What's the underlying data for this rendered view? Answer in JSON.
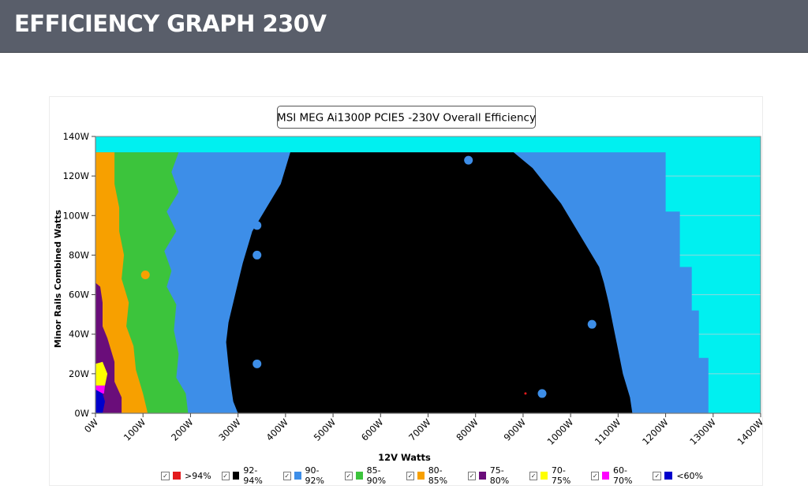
{
  "header": {
    "title": "EFFICIENCY GRAPH 230V"
  },
  "chart_data": {
    "type": "heatmap",
    "title": "MSI MEG Ai1300P PCIE5 -230V Overall Efficiency",
    "xlabel": "12V Watts",
    "ylabel": "Minor Rails Combined Watts",
    "xlim": [
      0,
      1400
    ],
    "ylim": [
      0,
      140
    ],
    "x_ticks": [
      0,
      100,
      200,
      300,
      400,
      500,
      600,
      700,
      800,
      900,
      1000,
      1100,
      1200,
      1300,
      1400
    ],
    "x_tick_labels": [
      "0W",
      "100W",
      "200W",
      "300W",
      "400W",
      "500W",
      "600W",
      "700W",
      "800W",
      "900W",
      "1000W",
      "1100W",
      "1200W",
      "1300W",
      "1400W"
    ],
    "y_ticks": [
      0,
      20,
      40,
      60,
      80,
      100,
      120,
      140
    ],
    "y_tick_labels": [
      "0W",
      "20W",
      "40W",
      "60W",
      "80W",
      "100W",
      "120W",
      "140W"
    ],
    "grid": true,
    "legend_position": "bottom",
    "background_color": "#00f0f0",
    "grid_color": "#8fd8dc",
    "legend": [
      {
        "label": ">94%",
        "color": "#e31a1c",
        "check": "✓"
      },
      {
        "label": "92-94%",
        "color": "#000000",
        "check": "✓"
      },
      {
        "label": "90-92%",
        "color": "#3d8ee8",
        "check": "✓"
      },
      {
        "label": "85-90%",
        "color": "#3cc43c",
        "check": "✓"
      },
      {
        "label": "80-85%",
        "color": "#f7a000",
        "check": "✓"
      },
      {
        "label": "75-80%",
        "color": "#6a0d7a",
        "check": "✓"
      },
      {
        "label": "70-75%",
        "color": "#ffff00",
        "check": "✓"
      },
      {
        "label": "60-70%",
        "color": "#ff00ff",
        "check": "✓"
      },
      {
        "label": "<60%",
        "color": "#0000cc",
        "check": "✓"
      }
    ],
    "data_ymax": 132,
    "regions": [
      {
        "band": "90-92%",
        "color": "#3d8ee8",
        "points": [
          [
            0,
            0
          ],
          [
            1290,
            0
          ],
          [
            1290,
            28
          ],
          [
            1270,
            28
          ],
          [
            1270,
            52
          ],
          [
            1255,
            52
          ],
          [
            1255,
            74
          ],
          [
            1230,
            74
          ],
          [
            1230,
            102
          ],
          [
            1200,
            102
          ],
          [
            1200,
            132
          ],
          [
            0,
            132
          ]
        ]
      },
      {
        "band": "85-90%",
        "color": "#3cc43c",
        "points": [
          [
            0,
            0
          ],
          [
            195,
            0
          ],
          [
            190,
            10
          ],
          [
            170,
            18
          ],
          [
            175,
            30
          ],
          [
            165,
            42
          ],
          [
            170,
            55
          ],
          [
            150,
            64
          ],
          [
            160,
            72
          ],
          [
            145,
            82
          ],
          [
            170,
            92
          ],
          [
            150,
            102
          ],
          [
            175,
            112
          ],
          [
            160,
            122
          ],
          [
            175,
            132
          ],
          [
            0,
            132
          ]
        ]
      },
      {
        "band": "80-85%",
        "color": "#f7a000",
        "points": [
          [
            0,
            0
          ],
          [
            110,
            0
          ],
          [
            100,
            10
          ],
          [
            85,
            22
          ],
          [
            80,
            34
          ],
          [
            65,
            44
          ],
          [
            70,
            56
          ],
          [
            55,
            68
          ],
          [
            60,
            80
          ],
          [
            50,
            92
          ],
          [
            50,
            104
          ],
          [
            40,
            116
          ],
          [
            40,
            132
          ],
          [
            0,
            132
          ]
        ]
      },
      {
        "band": "92-94%",
        "color": "#000000",
        "points": [
          [
            300,
            0
          ],
          [
            1130,
            0
          ],
          [
            1125,
            8
          ],
          [
            1110,
            20
          ],
          [
            1100,
            32
          ],
          [
            1090,
            44
          ],
          [
            1080,
            56
          ],
          [
            1070,
            66
          ],
          [
            1060,
            74
          ],
          [
            1040,
            82
          ],
          [
            1020,
            90
          ],
          [
            1000,
            98
          ],
          [
            980,
            106
          ],
          [
            960,
            112
          ],
          [
            940,
            118
          ],
          [
            920,
            124
          ],
          [
            900,
            128
          ],
          [
            880,
            132
          ],
          [
            410,
            132
          ],
          [
            400,
            124
          ],
          [
            390,
            116
          ],
          [
            370,
            108
          ],
          [
            350,
            100
          ],
          [
            330,
            92
          ],
          [
            320,
            84
          ],
          [
            310,
            76
          ],
          [
            300,
            66
          ],
          [
            290,
            56
          ],
          [
            280,
            46
          ],
          [
            275,
            36
          ],
          [
            280,
            24
          ],
          [
            285,
            14
          ],
          [
            290,
            6
          ]
        ]
      },
      {
        "band": "75-80%",
        "color": "#6a0d7a",
        "points": [
          [
            0,
            0
          ],
          [
            55,
            0
          ],
          [
            55,
            8
          ],
          [
            40,
            16
          ],
          [
            40,
            26
          ],
          [
            25,
            38
          ],
          [
            15,
            44
          ],
          [
            15,
            56
          ],
          [
            10,
            64
          ],
          [
            0,
            66
          ]
        ]
      },
      {
        "band": "70-75%",
        "color": "#ffff00",
        "points": [
          [
            0,
            14
          ],
          [
            20,
            14
          ],
          [
            25,
            20
          ],
          [
            15,
            26
          ],
          [
            0,
            25
          ]
        ]
      },
      {
        "band": "60-70%",
        "color": "#ff00ff",
        "points": [
          [
            0,
            10
          ],
          [
            18,
            10
          ],
          [
            20,
            14
          ],
          [
            0,
            14
          ]
        ]
      },
      {
        "band": "<60%",
        "color": "#0000cc",
        "points": [
          [
            0,
            0
          ],
          [
            15,
            0
          ],
          [
            20,
            6
          ],
          [
            15,
            10
          ],
          [
            0,
            12
          ]
        ]
      }
    ],
    "points": [
      {
        "band": "90-92%",
        "color": "#3d8ee8",
        "x": 340,
        "y": 25
      },
      {
        "band": "90-92%",
        "color": "#3d8ee8",
        "x": 340,
        "y": 80
      },
      {
        "band": "90-92%",
        "color": "#3d8ee8",
        "x": 340,
        "y": 95
      },
      {
        "band": "90-92%",
        "color": "#3d8ee8",
        "x": 940,
        "y": 10
      },
      {
        "band": "90-92%",
        "color": "#3d8ee8",
        "x": 1045,
        "y": 45
      },
      {
        "band": "90-92%",
        "color": "#3d8ee8",
        "x": 785,
        "y": 128
      },
      {
        "band": "80-85%",
        "color": "#f7a000",
        "x": 105,
        "y": 70
      },
      {
        "band": ">94%",
        "color": "#e31a1c",
        "x": 905,
        "y": 10
      }
    ]
  }
}
